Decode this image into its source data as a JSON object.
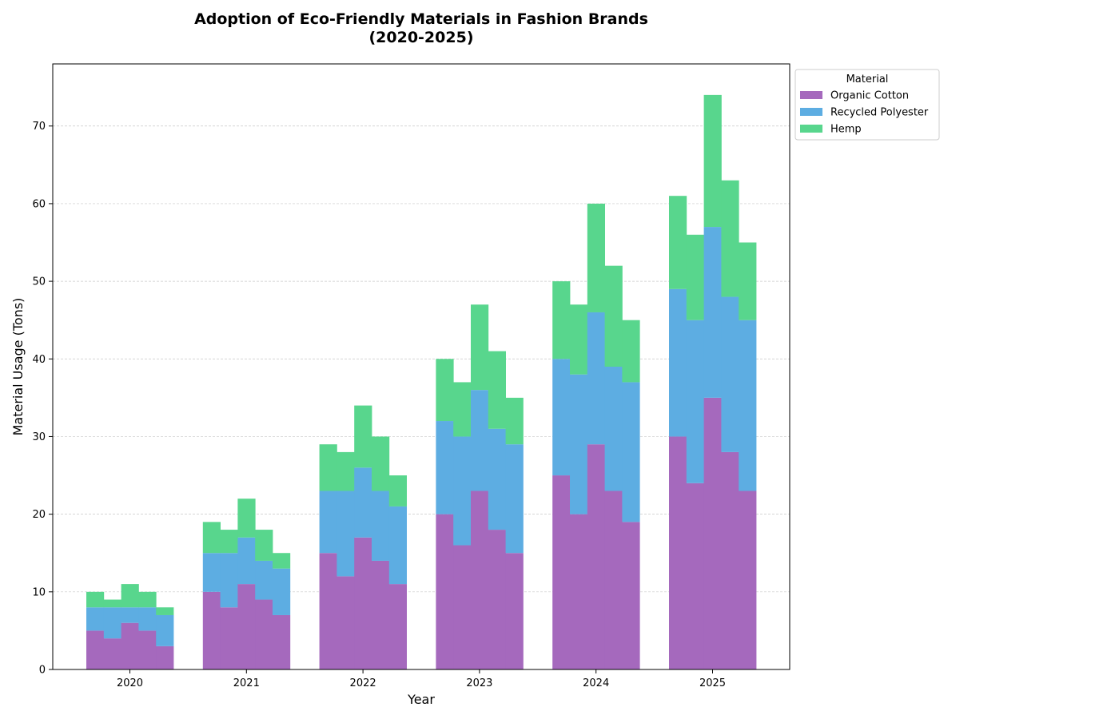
{
  "chart_data": {
    "type": "bar",
    "stacked": true,
    "title_lines": [
      "Adoption of Eco-Friendly Materials in Fashion Brands",
      "(2020-2025)"
    ],
    "xlabel": "Year",
    "ylabel": "Material Usage (Tons)",
    "categories": [
      "2020",
      "2021",
      "2022",
      "2023",
      "2024",
      "2025"
    ],
    "ylim": [
      0,
      78
    ],
    "yticks": [
      "0",
      "10",
      "20",
      "30",
      "40",
      "50",
      "60",
      "70"
    ],
    "grid": "horizontal dashed",
    "legend": {
      "title": "Material",
      "placement": "outside upper-right"
    },
    "series": [
      {
        "name": "Organic Cotton",
        "color": "#a569bd",
        "values": [
          [
            5,
            4,
            6,
            5,
            3
          ],
          [
            10,
            8,
            11,
            9,
            7
          ],
          [
            15,
            12,
            17,
            14,
            11
          ],
          [
            20,
            16,
            23,
            18,
            15
          ],
          [
            25,
            20,
            29,
            23,
            19
          ],
          [
            30,
            24,
            35,
            28,
            23
          ]
        ]
      },
      {
        "name": "Recycled Polyester",
        "color": "#5dade2",
        "values": [
          [
            3,
            4,
            2,
            3,
            4
          ],
          [
            5,
            7,
            6,
            5,
            6
          ],
          [
            8,
            11,
            9,
            9,
            10
          ],
          [
            12,
            14,
            13,
            13,
            14
          ],
          [
            15,
            18,
            17,
            16,
            18
          ],
          [
            19,
            21,
            22,
            20,
            22
          ]
        ]
      },
      {
        "name": "Hemp",
        "color": "#58d68d",
        "values": [
          [
            2,
            1,
            3,
            2,
            1
          ],
          [
            4,
            3,
            5,
            4,
            2
          ],
          [
            6,
            5,
            8,
            7,
            4
          ],
          [
            8,
            7,
            11,
            10,
            6
          ],
          [
            10,
            9,
            14,
            13,
            8
          ],
          [
            12,
            11,
            17,
            15,
            10
          ]
        ]
      }
    ]
  }
}
